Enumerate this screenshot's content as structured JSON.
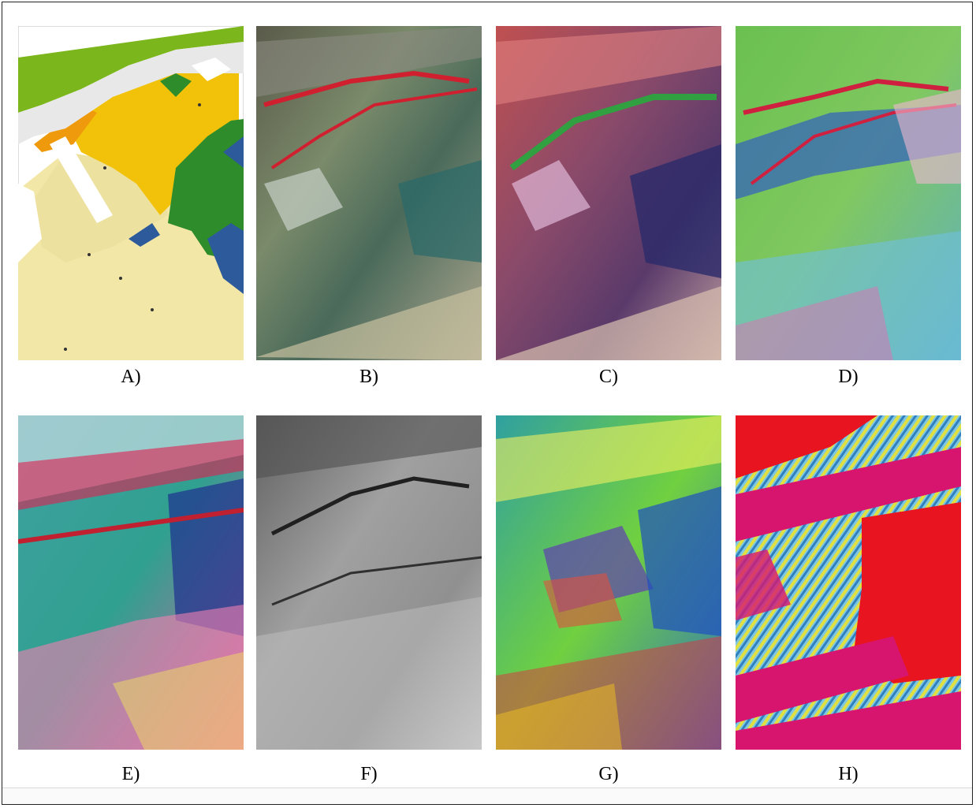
{
  "panels": [
    {
      "id": "A",
      "label": "A)",
      "kind": "geologic-map"
    },
    {
      "id": "B",
      "label": "B)",
      "kind": "true-color-composite"
    },
    {
      "id": "C",
      "label": "C)",
      "kind": "false-color-composite"
    },
    {
      "id": "D",
      "label": "D)",
      "kind": "ratio-composite"
    },
    {
      "id": "E",
      "label": "E)",
      "kind": "pca-composite"
    },
    {
      "id": "F",
      "label": "F)",
      "kind": "grayscale-band"
    },
    {
      "id": "G",
      "label": "G)",
      "kind": "mnf-composite"
    },
    {
      "id": "H",
      "label": "H)",
      "kind": "classification-map"
    }
  ],
  "colors": {
    "map_green": "#7cb61d",
    "map_orange": "#ee9a0c",
    "map_yellow": "#f2c20a",
    "map_pale": "#f2e6a6",
    "map_dark_green": "#2e8d2a",
    "map_blue": "#2c5a9a",
    "class_red": "#e8141f",
    "class_magenta": "#d8156e"
  }
}
